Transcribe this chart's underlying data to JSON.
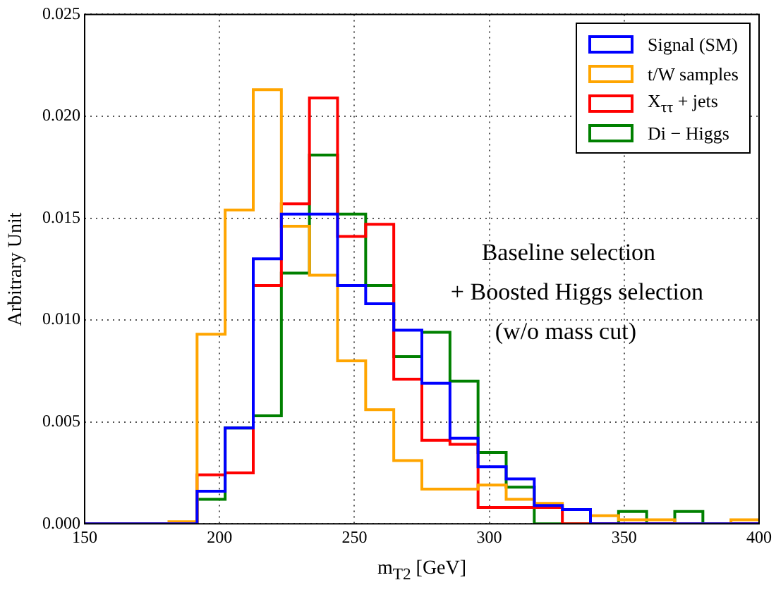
{
  "chart_data": {
    "type": "histogram",
    "xlabel": "m$_{T2}$ [GeV]",
    "ylabel": "Arbitrary Unit",
    "bins": [
      150,
      160.42,
      170.83,
      181.25,
      191.67,
      202.08,
      212.5,
      222.92,
      233.33,
      243.75,
      254.17,
      264.58,
      275,
      285.42,
      295.83,
      306.25,
      316.67,
      327.08,
      337.5,
      347.92,
      358.33,
      368.75,
      379.17,
      389.58,
      400
    ],
    "series": [
      {
        "name": "Signal (SM)",
        "color": "#0000ff",
        "values": [
          0,
          0,
          0,
          0,
          0.0016,
          0.0047,
          0.013,
          0.0152,
          0.0152,
          0.0117,
          0.0108,
          0.0095,
          0.0069,
          0.0042,
          0.0028,
          0.0022,
          0.0009,
          0.0007,
          0,
          0,
          0,
          0,
          0,
          0
        ]
      },
      {
        "name": "t/W samples",
        "color": "#ffa500",
        "values": [
          0,
          0,
          0,
          0.0001,
          0.0093,
          0.0154,
          0.0213,
          0.0146,
          0.0122,
          0.008,
          0.0056,
          0.0031,
          0.0017,
          0.0017,
          0.0019,
          0.0012,
          0.001,
          0.0007,
          0.0004,
          0.0002,
          0.0002,
          0,
          0,
          0.0002
        ]
      },
      {
        "name": "X$_{ττ}$ + jets",
        "color": "#ff0000",
        "values": [
          0,
          0,
          0,
          0,
          0.0024,
          0.0025,
          0.0117,
          0.0157,
          0.0209,
          0.0141,
          0.0147,
          0.0071,
          0.0041,
          0.0039,
          0.0008,
          0.0008,
          0.0008,
          0,
          0,
          0,
          0,
          0,
          0,
          0
        ]
      },
      {
        "name": "Di − Higgs",
        "color": "#008000",
        "values": [
          0,
          0,
          0,
          0,
          0.0012,
          0.0047,
          0.0053,
          0.0123,
          0.0181,
          0.0152,
          0.0117,
          0.0082,
          0.0094,
          0.007,
          0.0035,
          0.0018,
          0,
          0,
          0,
          0.0006,
          0,
          0.0006,
          0,
          0
        ]
      }
    ],
    "xlim": [
      150,
      400
    ],
    "xticks": [
      150,
      200,
      250,
      300,
      350,
      400
    ],
    "ylim": [
      0,
      0.025
    ],
    "yticks": [
      {
        "value": 0,
        "label": "0.000"
      },
      {
        "value": 0.005,
        "label": "0.005"
      },
      {
        "value": 0.01,
        "label": "0.010"
      },
      {
        "value": 0.015,
        "label": "0.015"
      },
      {
        "value": 0.02,
        "label": "0.020"
      },
      {
        "value": 0.025,
        "label": "0.025"
      }
    ],
    "grid": true,
    "legend": "top right",
    "annotations": [
      "Baseline selection",
      "+ Boosted Higgs selection",
      "(w/o mass cut)"
    ]
  }
}
